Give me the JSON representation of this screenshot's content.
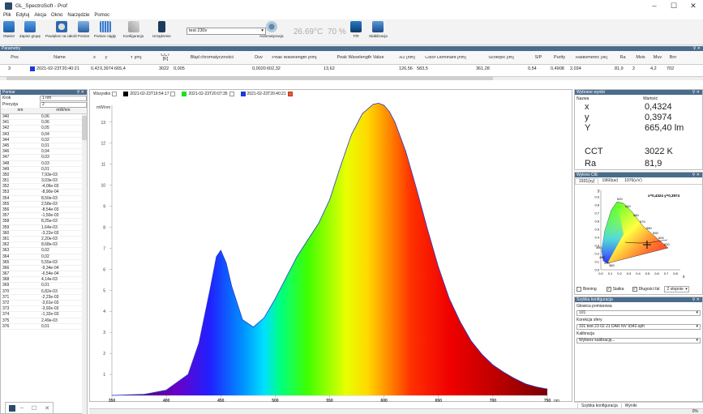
{
  "app": {
    "title": "GL_SpectroSoft - Prof"
  },
  "menu": [
    "Plik",
    "Edytuj",
    "Akcja",
    "Okno",
    "Narzędzie",
    "Pomoc"
  ],
  "toolbar": {
    "buttons": [
      "Otwórz",
      "Zapisz grupę",
      "Powiększ na całość",
      "Pomiar",
      "Pomiar ciągły",
      "Konfiguracja",
      "Urządzenie"
    ],
    "combo_value": "test 230v",
    "automatyzacja": "Automatyzacja",
    "temperature": "26.69°C",
    "humidity": "70 %",
    "tr": "T/R",
    "stabilizacja": "Stabilizacja"
  },
  "params": {
    "header": "Parametry",
    "columns": [
      "Pos",
      "Name",
      "x",
      "y",
      "Y [lm]",
      "CCT [K]",
      "Błąd chromatyczności",
      "Duv",
      "Peak Wavelength [nm]",
      "Peak Wavelength Value",
      "λ/2 [nm]",
      "Color Dominant [nm]",
      "Scotopic [lm]",
      "S/P",
      "Purity",
      "Radiometric [W]",
      "Ra",
      "Mvis",
      "Muv",
      "Bnr"
    ],
    "row": [
      "3",
      "2021-02-23T20:40:21",
      "0,4324",
      "0,3974",
      "665,4",
      "3022",
      "0,005",
      "0,002089",
      "602,32",
      "13,62",
      "126,56",
      "583,5",
      "361,28",
      "0,54",
      "0,4908",
      "2,034",
      "81,9",
      "2",
      "4,2",
      "702"
    ]
  },
  "pomiar": {
    "header": "Pomiar",
    "krok_label": "Krok",
    "krok_value": "1 nm",
    "precyzja_label": "Precyzja",
    "precyzja_value": "2",
    "col_nm": "nm",
    "col_mw": "mW/nm",
    "rows": [
      [
        "340",
        "0,06"
      ],
      [
        "341",
        "0,06"
      ],
      [
        "342",
        "0,05"
      ],
      [
        "343",
        "0,04"
      ],
      [
        "344",
        "0,02"
      ],
      [
        "345",
        "0,01"
      ],
      [
        "346",
        "0,04"
      ],
      [
        "347",
        "0,03"
      ],
      [
        "348",
        "0,03"
      ],
      [
        "349",
        "0,01"
      ],
      [
        "350",
        "7,93e-03"
      ],
      [
        "351",
        "3,03e-03"
      ],
      [
        "352",
        "-4,06e-03"
      ],
      [
        "353",
        "-8,90e-04"
      ],
      [
        "354",
        "8,50e-03"
      ],
      [
        "355",
        "2,58e-03"
      ],
      [
        "356",
        "-8,54e-03"
      ],
      [
        "357",
        "-1,50e-03"
      ],
      [
        "358",
        "8,25e-03"
      ],
      [
        "359",
        "1,64e-03"
      ],
      [
        "360",
        "-3,22e-03"
      ],
      [
        "361",
        "2,20e-03"
      ],
      [
        "362",
        "8,68e-03"
      ],
      [
        "363",
        "0,02"
      ],
      [
        "364",
        "0,02"
      ],
      [
        "365",
        "5,55e-03"
      ],
      [
        "366",
        "-9,34e-04"
      ],
      [
        "367",
        "-6,54e-04"
      ],
      [
        "368",
        "4,14e-03"
      ],
      [
        "369",
        "0,01"
      ],
      [
        "370",
        "6,82e-03"
      ],
      [
        "371",
        "-2,23e-03"
      ],
      [
        "372",
        "-3,61e-03"
      ],
      [
        "373",
        "-3,92e-03"
      ],
      [
        "374",
        "-1,32e-03"
      ],
      [
        "375",
        "2,49e-03"
      ],
      [
        "376",
        "0,01"
      ]
    ]
  },
  "tabs": [
    {
      "label": "Wszystko",
      "color": ""
    },
    {
      "label": "2021-02-23T19:54:17",
      "color": "#000000"
    },
    {
      "label": "2021-02-23T20:07:35",
      "color": "#22dd22"
    },
    {
      "label": "2021-02-23T20:40:21",
      "color": "#1a3adb"
    }
  ],
  "chart_data": {
    "type": "area",
    "ylabel": "mW/nm",
    "xlabel": "nm",
    "xlim": [
      350,
      750
    ],
    "ylim": [
      0,
      13.8
    ],
    "xticks": [
      350,
      400,
      450,
      500,
      550,
      600,
      650,
      700,
      750
    ],
    "yticks": [
      1,
      2,
      3,
      4,
      5,
      6,
      7,
      8,
      9,
      10,
      11,
      12,
      13
    ],
    "x": [
      350,
      380,
      400,
      420,
      430,
      440,
      446,
      450,
      455,
      460,
      470,
      480,
      490,
      500,
      510,
      520,
      530,
      540,
      550,
      560,
      570,
      580,
      590,
      595,
      600,
      605,
      610,
      620,
      630,
      640,
      650,
      660,
      670,
      680,
      690,
      700,
      710,
      720,
      730,
      740,
      750
    ],
    "values": [
      0,
      0.05,
      0.25,
      1.0,
      2.5,
      5.0,
      6.6,
      6.9,
      6.3,
      5.2,
      3.6,
      3.25,
      3.7,
      4.6,
      5.6,
      6.6,
      7.4,
      8.2,
      9.3,
      10.9,
      12.4,
      13.4,
      13.85,
      13.9,
      13.8,
      13.5,
      13.0,
      11.6,
      9.8,
      7.9,
      6.1,
      4.6,
      3.5,
      2.6,
      1.95,
      1.45,
      1.1,
      0.8,
      0.55,
      0.4,
      0.3
    ]
  },
  "results": {
    "header": "Wybrane wyniki",
    "col_name": "Nazwa",
    "col_value": "Wartość",
    "rows": [
      [
        "x",
        "0,4324"
      ],
      [
        "y",
        "0,3974"
      ],
      [
        "Y",
        "665,40 lm"
      ],
      [
        "CCT",
        "3022 K"
      ],
      [
        "Ra",
        "81,9"
      ]
    ]
  },
  "cie": {
    "header": "Wykres CIE",
    "tabs": [
      "1931(xy)",
      "1960(uv)",
      "1976(u'v')"
    ],
    "point_label": "x=0,4324 y=0,3974",
    "y_label": "y",
    "x_label": "x",
    "yticks": [
      "0.9",
      "0.8",
      "0.7",
      "0.6",
      "0.5",
      "0.4",
      "0.3",
      "0.2",
      "0.1",
      "0.0"
    ],
    "xticks": [
      "0.0",
      "0.1",
      "0.2",
      "0.3",
      "0.4",
      "0.5",
      "0.6",
      "0.7",
      "0.8"
    ],
    "wl_labels": [
      "520",
      "540",
      "560",
      "570",
      "580",
      "590",
      "600",
      "620",
      "490",
      "480",
      "470",
      "380"
    ],
    "opts": [
      "Binning",
      "Siatka",
      "Długości fal"
    ],
    "opts_checked": [
      false,
      true,
      true
    ],
    "combo": "2 stopnie"
  },
  "quick": {
    "header": "Szybka konfiguracja",
    "head_label": "Głowica pomiarowa",
    "head_value": "101",
    "sphere_label": "Korekcja sfery",
    "sphere_value": "101 test 23 02 21 DAR NV 9342.sph",
    "cal_label": "Kalibracja",
    "cal_value": "Wybierz kalibrację..."
  },
  "bottom": {
    "tabs": [
      "Szybka konfiguracja",
      "Wyniki"
    ],
    "progress": "0%"
  }
}
